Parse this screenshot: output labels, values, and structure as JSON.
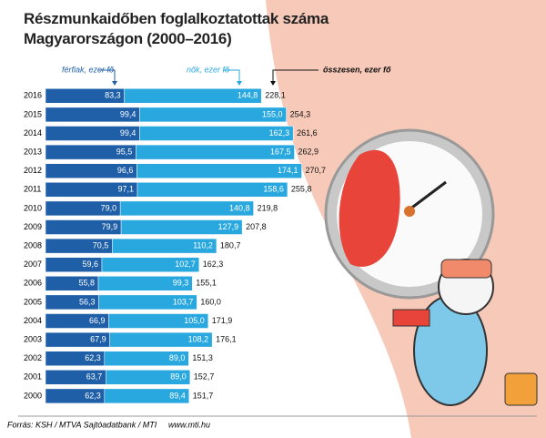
{
  "chart_data": {
    "type": "stacked-barh",
    "title": "Részmunkaidőben foglalkoztatottak száma Magyarországon (2000–2016)",
    "categories": [
      "2016",
      "2015",
      "2014",
      "2013",
      "2012",
      "2011",
      "2010",
      "2009",
      "2008",
      "2007",
      "2006",
      "2005",
      "2004",
      "2003",
      "2002",
      "2001",
      "2000"
    ],
    "series": [
      {
        "name": "férfiak, ezer fő",
        "color": "#1f5fa8",
        "values": [
          83.3,
          99.4,
          99.4,
          95.5,
          96.6,
          97.1,
          79.0,
          79.9,
          70.5,
          59.6,
          55.8,
          56.3,
          66.9,
          67.9,
          62.3,
          63.7,
          62.3
        ],
        "value_labels": [
          "83,3",
          "99,4",
          "99,4",
          "95,5",
          "96,6",
          "97,1",
          "79,0",
          "79,9",
          "70,5",
          "59,6",
          "55,8",
          "56,3",
          "66,9",
          "67,9",
          "62,3",
          "63,7",
          "62,3"
        ]
      },
      {
        "name": "nők, ezer fő",
        "color": "#29a8e0",
        "values": [
          144.8,
          155.0,
          162.3,
          167.5,
          174.1,
          158.6,
          140.8,
          127.9,
          110.2,
          102.7,
          99.3,
          103.7,
          105.0,
          108.2,
          89.0,
          89.0,
          89.4
        ],
        "value_labels": [
          "144,8",
          "155,0",
          "162,3",
          "167,5",
          "174,1",
          "158,6",
          "140,8",
          "127,9",
          "110,2",
          "102,7",
          "99,3",
          "103,7",
          "105,0",
          "108,2",
          "89,0",
          "89,0",
          "89,4"
        ]
      }
    ],
    "totals": {
      "name": "összesen, ezer fő",
      "values": [
        228.1,
        254.3,
        261.6,
        262.9,
        270.7,
        255.8,
        219.8,
        207.8,
        180.7,
        162.3,
        155.1,
        160.0,
        171.9,
        176.1,
        151.3,
        152.7,
        151.7
      ],
      "value_labels": [
        "228,1",
        "254,3",
        "261,6",
        "262,9",
        "270,7",
        "255,8",
        "219,8",
        "207,8",
        "180,7",
        "162,3",
        "155,1",
        "160,0",
        "171,9",
        "176,1",
        "151,3",
        "152,7",
        "151,7"
      ]
    },
    "source": "Forrás: KSH / MTVA Sajtóadatbank / MTI",
    "website": "www.mti.hu"
  }
}
